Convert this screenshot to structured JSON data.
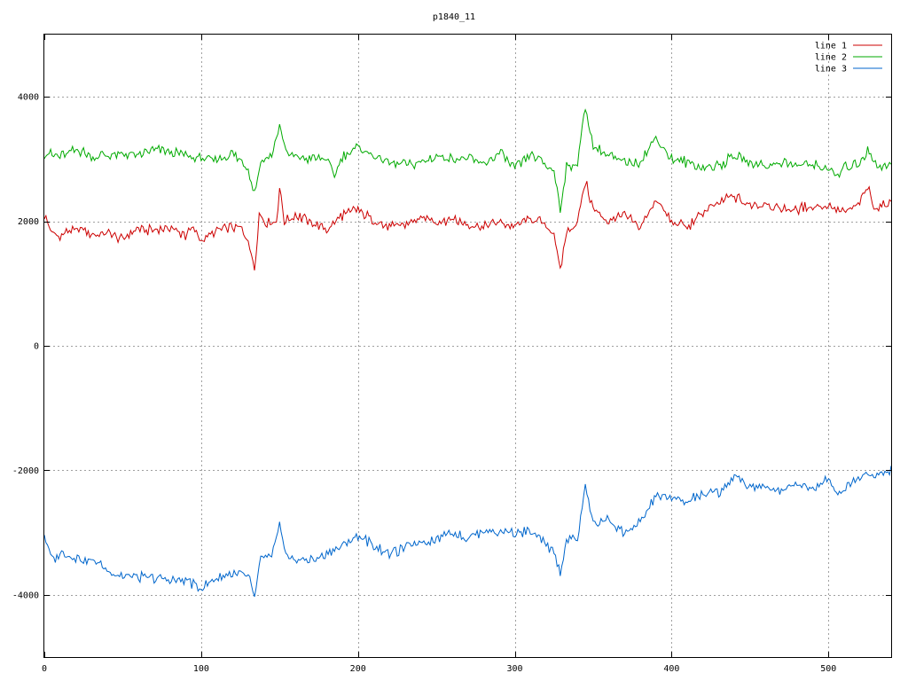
{
  "chart_data": {
    "type": "line",
    "title": "p1840_11",
    "xlabel": "",
    "ylabel": "",
    "xlim": [
      0,
      540
    ],
    "ylim": [
      -5000,
      5000
    ],
    "x_ticks": [
      0,
      100,
      200,
      300,
      400,
      500
    ],
    "y_ticks": [
      -4000,
      -2000,
      0,
      2000,
      4000
    ],
    "grid": true,
    "legend_position": "top-right",
    "x_step": 1,
    "series": [
      {
        "name": "line 1",
        "color": "#cc0000",
        "anchors": [
          [
            0,
            2100
          ],
          [
            5,
            1800
          ],
          [
            10,
            1750
          ],
          [
            15,
            1850
          ],
          [
            20,
            1820
          ],
          [
            25,
            1900
          ],
          [
            30,
            1780
          ],
          [
            40,
            1800
          ],
          [
            50,
            1720
          ],
          [
            60,
            1880
          ],
          [
            70,
            1850
          ],
          [
            80,
            1900
          ],
          [
            90,
            1780
          ],
          [
            95,
            1900
          ],
          [
            100,
            1700
          ],
          [
            110,
            1850
          ],
          [
            120,
            1900
          ],
          [
            125,
            1880
          ],
          [
            130,
            1700
          ],
          [
            134,
            1220
          ],
          [
            137,
            2100
          ],
          [
            140,
            2000
          ],
          [
            148,
            1980
          ],
          [
            150,
            2550
          ],
          [
            153,
            2000
          ],
          [
            160,
            2100
          ],
          [
            170,
            2000
          ],
          [
            180,
            1850
          ],
          [
            190,
            2100
          ],
          [
            200,
            2200
          ],
          [
            210,
            2000
          ],
          [
            220,
            1900
          ],
          [
            230,
            1950
          ],
          [
            240,
            2050
          ],
          [
            250,
            2000
          ],
          [
            260,
            2050
          ],
          [
            270,
            1950
          ],
          [
            280,
            1900
          ],
          [
            290,
            1980
          ],
          [
            300,
            1900
          ],
          [
            310,
            2050
          ],
          [
            320,
            1950
          ],
          [
            325,
            1800
          ],
          [
            329,
            1220
          ],
          [
            333,
            1800
          ],
          [
            340,
            2000
          ],
          [
            345,
            2650
          ],
          [
            350,
            2200
          ],
          [
            360,
            2000
          ],
          [
            370,
            2100
          ],
          [
            380,
            1900
          ],
          [
            390,
            2350
          ],
          [
            400,
            2000
          ],
          [
            410,
            1900
          ],
          [
            420,
            2150
          ],
          [
            430,
            2300
          ],
          [
            440,
            2400
          ],
          [
            450,
            2250
          ],
          [
            460,
            2300
          ],
          [
            470,
            2200
          ],
          [
            480,
            2200
          ],
          [
            490,
            2250
          ],
          [
            500,
            2250
          ],
          [
            510,
            2150
          ],
          [
            520,
            2300
          ],
          [
            525,
            2550
          ],
          [
            530,
            2200
          ],
          [
            540,
            2300
          ]
        ]
      },
      {
        "name": "line 2",
        "color": "#00aa00",
        "anchors": [
          [
            0,
            3100
          ],
          [
            10,
            3050
          ],
          [
            20,
            3150
          ],
          [
            30,
            3050
          ],
          [
            40,
            3050
          ],
          [
            50,
            3100
          ],
          [
            60,
            3050
          ],
          [
            70,
            3150
          ],
          [
            80,
            3100
          ],
          [
            90,
            3080
          ],
          [
            100,
            3000
          ],
          [
            110,
            3000
          ],
          [
            120,
            3100
          ],
          [
            130,
            2850
          ],
          [
            134,
            2450
          ],
          [
            138,
            2950
          ],
          [
            145,
            3050
          ],
          [
            150,
            3550
          ],
          [
            155,
            3050
          ],
          [
            160,
            3050
          ],
          [
            170,
            3000
          ],
          [
            180,
            3000
          ],
          [
            185,
            2700
          ],
          [
            190,
            3050
          ],
          [
            200,
            3200
          ],
          [
            210,
            3050
          ],
          [
            220,
            2950
          ],
          [
            230,
            2900
          ],
          [
            240,
            2950
          ],
          [
            250,
            3050
          ],
          [
            260,
            3000
          ],
          [
            270,
            3000
          ],
          [
            280,
            2900
          ],
          [
            290,
            3100
          ],
          [
            300,
            2850
          ],
          [
            310,
            3050
          ],
          [
            320,
            2900
          ],
          [
            325,
            2800
          ],
          [
            329,
            2220
          ],
          [
            333,
            2850
          ],
          [
            340,
            2950
          ],
          [
            345,
            3850
          ],
          [
            350,
            3200
          ],
          [
            360,
            3050
          ],
          [
            370,
            2950
          ],
          [
            380,
            2950
          ],
          [
            390,
            3350
          ],
          [
            400,
            3000
          ],
          [
            410,
            2950
          ],
          [
            420,
            2850
          ],
          [
            430,
            2900
          ],
          [
            440,
            3050
          ],
          [
            450,
            2950
          ],
          [
            460,
            2900
          ],
          [
            470,
            2950
          ],
          [
            480,
            2900
          ],
          [
            490,
            2900
          ],
          [
            500,
            2850
          ],
          [
            505,
            2700
          ],
          [
            510,
            2850
          ],
          [
            520,
            2950
          ],
          [
            525,
            3150
          ],
          [
            530,
            2900
          ],
          [
            540,
            2900
          ]
        ]
      },
      {
        "name": "line 3",
        "color": "#0066cc",
        "anchors": [
          [
            0,
            -3050
          ],
          [
            5,
            -3450
          ],
          [
            10,
            -3350
          ],
          [
            20,
            -3400
          ],
          [
            30,
            -3450
          ],
          [
            40,
            -3600
          ],
          [
            50,
            -3700
          ],
          [
            60,
            -3700
          ],
          [
            70,
            -3750
          ],
          [
            80,
            -3750
          ],
          [
            90,
            -3750
          ],
          [
            100,
            -3900
          ],
          [
            110,
            -3750
          ],
          [
            120,
            -3650
          ],
          [
            130,
            -3700
          ],
          [
            134,
            -4050
          ],
          [
            138,
            -3400
          ],
          [
            145,
            -3400
          ],
          [
            150,
            -2900
          ],
          [
            155,
            -3400
          ],
          [
            160,
            -3450
          ],
          [
            170,
            -3450
          ],
          [
            180,
            -3350
          ],
          [
            190,
            -3200
          ],
          [
            200,
            -3050
          ],
          [
            210,
            -3200
          ],
          [
            220,
            -3350
          ],
          [
            230,
            -3250
          ],
          [
            240,
            -3150
          ],
          [
            250,
            -3100
          ],
          [
            260,
            -3000
          ],
          [
            270,
            -3100
          ],
          [
            280,
            -2950
          ],
          [
            290,
            -3000
          ],
          [
            300,
            -3000
          ],
          [
            310,
            -3000
          ],
          [
            320,
            -3200
          ],
          [
            325,
            -3300
          ],
          [
            329,
            -3650
          ],
          [
            333,
            -3100
          ],
          [
            340,
            -3100
          ],
          [
            345,
            -2250
          ],
          [
            350,
            -2850
          ],
          [
            360,
            -2800
          ],
          [
            370,
            -3000
          ],
          [
            380,
            -2850
          ],
          [
            390,
            -2400
          ],
          [
            400,
            -2450
          ],
          [
            410,
            -2500
          ],
          [
            420,
            -2400
          ],
          [
            430,
            -2350
          ],
          [
            440,
            -2100
          ],
          [
            450,
            -2250
          ],
          [
            460,
            -2300
          ],
          [
            470,
            -2300
          ],
          [
            480,
            -2200
          ],
          [
            490,
            -2300
          ],
          [
            500,
            -2100
          ],
          [
            505,
            -2400
          ],
          [
            510,
            -2300
          ],
          [
            520,
            -2100
          ],
          [
            525,
            -2050
          ],
          [
            530,
            -2100
          ],
          [
            540,
            -2000
          ]
        ]
      }
    ]
  }
}
